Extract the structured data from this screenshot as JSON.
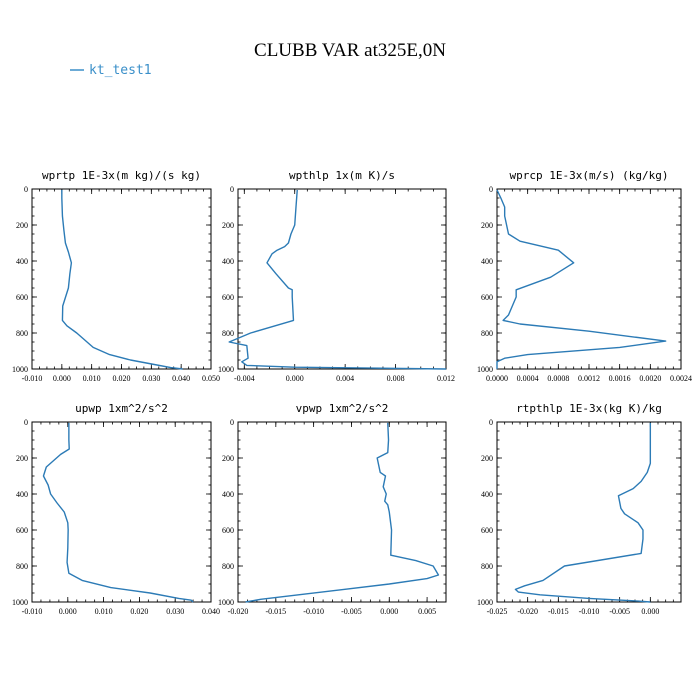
{
  "title": "CLUBB VAR at325E,0N",
  "legend": {
    "label": "kt_test1",
    "color": "#3a8fc9"
  },
  "chart_data": [
    {
      "type": "line",
      "title": "wprtp  1E-3x(m kg)/(s kg)",
      "xlim": [
        -0.01,
        0.05
      ],
      "ylim": [
        0,
        1000
      ],
      "y_inverted": true,
      "xticks": [
        -0.01,
        0.0,
        0.01,
        0.02,
        0.03,
        0.04,
        0.05
      ],
      "xtick_labels": [
        "-0.010",
        "0.000",
        "0.010",
        "0.020",
        "0.030",
        "0.040",
        "0.050"
      ],
      "yticks": [
        0,
        200,
        400,
        600,
        800,
        1000
      ],
      "ytick_labels": [
        "0",
        "200",
        "400",
        "600",
        "800",
        "1000"
      ],
      "series": [
        {
          "x": [
            0.0,
            0.0,
            0.0002,
            0.0007,
            0.0012,
            0.0022,
            0.0032,
            0.0027,
            0.0022,
            0.0003,
            0.0002,
            0.0017,
            0.005,
            0.0105,
            0.016,
            0.023,
            0.031,
            0.0365,
            0.0405
          ],
          "y": [
            5,
            50,
            150,
            230,
            300,
            350,
            410,
            470,
            550,
            650,
            730,
            760,
            800,
            880,
            920,
            950,
            975,
            992,
            1000
          ]
        }
      ]
    },
    {
      "type": "line",
      "title": "wpthlp  1x(m K)/s",
      "xlim": [
        -0.0045,
        0.012
      ],
      "ylim": [
        0,
        1000
      ],
      "y_inverted": true,
      "xticks": [
        -0.004,
        0.0,
        0.004,
        0.008,
        0.012
      ],
      "xtick_labels": [
        "-0.004",
        "0.000",
        "0.004",
        "0.008",
        "0.012"
      ],
      "yticks": [
        0,
        200,
        400,
        600,
        800,
        1000
      ],
      "ytick_labels": [
        "0",
        "200",
        "400",
        "600",
        "800",
        "1000"
      ],
      "series": [
        {
          "x": [
            0.0002,
            0.0001,
            0.0,
            -0.0003,
            -0.0005,
            -0.0008,
            -0.0014,
            -0.0018,
            -0.0022,
            -0.0015,
            -0.0005,
            -0.0002,
            -0.0002,
            -0.0001,
            -0.0035,
            -0.0052,
            -0.0038,
            -0.0037,
            -0.0042,
            -0.0038,
            0.0,
            0.006,
            0.012
          ],
          "y": [
            5,
            100,
            200,
            250,
            300,
            320,
            340,
            360,
            410,
            470,
            550,
            560,
            600,
            730,
            800,
            850,
            870,
            940,
            960,
            980,
            990,
            995,
            1000
          ]
        }
      ]
    },
    {
      "type": "line",
      "title": "wprcp  1E-3x(m/s) (kg/kg)",
      "xlim": [
        0.0,
        0.0024
      ],
      "ylim": [
        0,
        1000
      ],
      "y_inverted": true,
      "xticks": [
        0.0,
        0.0004,
        0.0008,
        0.0012,
        0.0016,
        0.002,
        0.0024
      ],
      "xtick_labels": [
        "0.0000",
        "0.0004",
        "0.0008",
        "0.0012",
        "0.0016",
        "0.0020",
        "0.0024"
      ],
      "yticks": [
        0,
        200,
        400,
        600,
        800,
        1000
      ],
      "ytick_labels": [
        "0",
        "200",
        "400",
        "600",
        "800",
        "1000"
      ],
      "series": [
        {
          "x": [
            0.0,
            5e-05,
            0.0001,
            0.0001,
            0.00015,
            0.0003,
            0.0008,
            0.001,
            0.0007,
            0.00025,
            0.00025,
            0.0002,
            0.00015,
            8e-05,
            0.0003,
            0.0012,
            0.0022,
            0.0016,
            0.0004,
            0.0001,
            0.0,
            0.0
          ],
          "y": [
            5,
            50,
            100,
            150,
            250,
            290,
            340,
            410,
            490,
            560,
            600,
            650,
            700,
            730,
            750,
            790,
            845,
            880,
            920,
            940,
            960,
            1000
          ]
        }
      ]
    },
    {
      "type": "line",
      "title": "upwp  1xm^2/s^2",
      "xlim": [
        -0.01,
        0.04
      ],
      "ylim": [
        0,
        1000
      ],
      "y_inverted": true,
      "xticks": [
        -0.01,
        0.0,
        0.01,
        0.02,
        0.03,
        0.04
      ],
      "xtick_labels": [
        "-0.010",
        "0.000",
        "0.010",
        "0.020",
        "0.030",
        "0.040"
      ],
      "yticks": [
        0,
        200,
        400,
        600,
        800,
        1000
      ],
      "ytick_labels": [
        "0",
        "200",
        "400",
        "600",
        "800",
        "1000"
      ],
      "series": [
        {
          "x": [
            0.0003,
            0.0003,
            0.0004,
            -0.002,
            -0.006,
            -0.0068,
            -0.0055,
            -0.0048,
            -0.003,
            -0.001,
            0.0,
            0.0001,
            0.0,
            -0.0002,
            0.0003,
            0.004,
            0.012,
            0.023,
            0.031,
            0.0345,
            0.035
          ],
          "y": [
            5,
            100,
            150,
            180,
            250,
            300,
            350,
            400,
            450,
            500,
            560,
            600,
            700,
            780,
            840,
            880,
            920,
            950,
            980,
            990,
            1000
          ]
        }
      ]
    },
    {
      "type": "line",
      "title": "vpwp  1xm^2/s^2",
      "xlim": [
        -0.02,
        0.0075
      ],
      "ylim": [
        0,
        1000
      ],
      "y_inverted": true,
      "xticks": [
        -0.02,
        -0.015,
        -0.01,
        -0.005,
        0.0,
        0.005
      ],
      "xtick_labels": [
        "-0.020",
        "-0.015",
        "-0.010",
        "-0.005",
        "0.000",
        "0.005"
      ],
      "yticks": [
        0,
        200,
        400,
        600,
        800,
        1000
      ],
      "ytick_labels": [
        "0",
        "200",
        "400",
        "600",
        "800",
        "1000"
      ],
      "series": [
        {
          "x": [
            -0.0002,
            -0.0001,
            -0.0002,
            -0.0016,
            -0.0012,
            -0.0005,
            -0.0008,
            -0.0004,
            -0.0006,
            -0.0002,
            0.0,
            0.0003,
            0.0002,
            0.0035,
            0.0058,
            0.0065,
            0.005,
            0.0,
            -0.006,
            -0.012,
            -0.017,
            -0.019
          ],
          "y": [
            5,
            100,
            170,
            200,
            280,
            300,
            360,
            400,
            440,
            460,
            500,
            600,
            740,
            770,
            800,
            850,
            870,
            900,
            930,
            960,
            985,
            1000
          ]
        }
      ]
    },
    {
      "type": "line",
      "title": "rtpthlp  1E-3x(kg K)/kg",
      "xlim": [
        -0.025,
        0.005
      ],
      "ylim": [
        0,
        1000
      ],
      "y_inverted": true,
      "xticks": [
        -0.025,
        -0.02,
        -0.015,
        -0.01,
        -0.005,
        0.0
      ],
      "xtick_labels": [
        "-0.025",
        "-0.020",
        "-0.015",
        "-0.010",
        "-0.005",
        "0.000"
      ],
      "yticks": [
        0,
        200,
        400,
        600,
        800,
        1000
      ],
      "ytick_labels": [
        "0",
        "200",
        "400",
        "600",
        "800",
        "1000"
      ],
      "series": [
        {
          "x": [
            0.0,
            0.0,
            0.0,
            -0.0005,
            -0.0015,
            -0.0028,
            -0.0052,
            -0.0048,
            -0.0042,
            -0.002,
            -0.0012,
            -0.0012,
            -0.0015,
            -0.014,
            -0.0175,
            -0.0205,
            -0.022,
            -0.0215,
            -0.018,
            -0.01,
            -0.002,
            0.0
          ],
          "y": [
            5,
            100,
            230,
            280,
            330,
            370,
            410,
            480,
            510,
            560,
            600,
            650,
            730,
            800,
            880,
            910,
            930,
            945,
            960,
            980,
            995,
            1000
          ]
        }
      ]
    }
  ]
}
